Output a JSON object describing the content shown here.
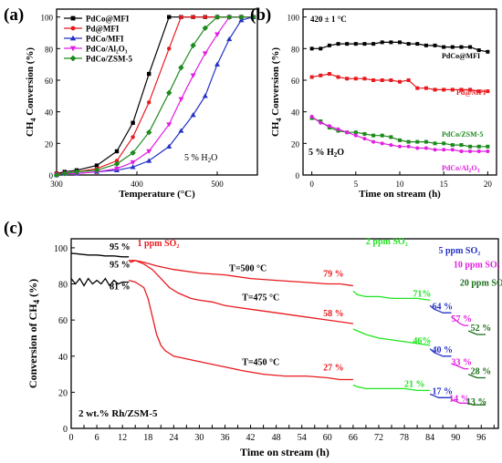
{
  "chart_data": [
    {
      "panel": "(a)",
      "type": "line",
      "xlabel": "Temperature (°C)",
      "ylabel_main": "CH",
      "ylabel_sub": "4",
      "ylabel_rest": " Conversion (%)",
      "xlim": [
        300,
        550
      ],
      "ylim": [
        0,
        105
      ],
      "xticks": [
        300,
        400,
        500
      ],
      "yticks": [
        0,
        20,
        40,
        60,
        80,
        100
      ],
      "annotation": "5 % H₂O",
      "legend_placement": "top-left",
      "series": [
        {
          "name": "PdCo@MFI",
          "color": "#000000",
          "marker": "square",
          "x": [
            300,
            310,
            325,
            350,
            375,
            395,
            415,
            440,
            455,
            470,
            485,
            500,
            515,
            530,
            545
          ],
          "y": [
            1,
            2,
            3,
            6,
            15,
            33,
            64,
            100,
            100,
            100,
            100,
            100,
            100,
            100,
            100
          ]
        },
        {
          "name": "Pd@MFI",
          "color": "#e8191e",
          "marker": "circle",
          "x": [
            300,
            310,
            325,
            350,
            375,
            395,
            415,
            440,
            455,
            470,
            485,
            500,
            515,
            530,
            545
          ],
          "y": [
            1,
            1,
            2,
            4,
            9,
            24,
            46,
            80,
            100,
            100,
            100,
            100,
            100,
            100,
            100
          ]
        },
        {
          "name": "PdCo/MFI",
          "color": "#2430c8",
          "marker": "triangle-up",
          "x": [
            300,
            310,
            325,
            350,
            375,
            395,
            415,
            440,
            455,
            470,
            485,
            500,
            515,
            530,
            545
          ],
          "y": [
            0,
            1,
            1,
            2,
            3,
            5,
            9,
            18,
            28,
            38,
            50,
            70,
            86,
            98,
            100
          ]
        },
        {
          "name": "PdCo/Al₂O₃",
          "color": "#e21ee2",
          "marker": "triangle-down",
          "x": [
            300,
            310,
            325,
            350,
            375,
            395,
            415,
            440,
            455,
            470,
            485,
            500,
            515,
            530,
            545
          ],
          "y": [
            0,
            1,
            1,
            2,
            4,
            8,
            15,
            32,
            48,
            63,
            77,
            89,
            100,
            100,
            100
          ]
        },
        {
          "name": "PdCo/ZSM-5",
          "color": "#1c8a1c",
          "marker": "diamond",
          "x": [
            300,
            310,
            325,
            350,
            375,
            395,
            415,
            440,
            455,
            470,
            485,
            500,
            515,
            530,
            545
          ],
          "y": [
            0,
            1,
            2,
            3,
            7,
            14,
            27,
            52,
            68,
            82,
            93,
            100,
            100,
            100,
            100
          ]
        }
      ]
    },
    {
      "panel": "(b)",
      "type": "line",
      "xlabel": "Time on stream (h)",
      "ylabel_main": "CH",
      "ylabel_sub": "4",
      "ylabel_rest": " Conversion (%)",
      "xlim": [
        -1,
        21
      ],
      "ylim": [
        0,
        105
      ],
      "xticks": [
        0,
        5,
        10,
        15,
        20
      ],
      "yticks": [
        0,
        20,
        40,
        60,
        80,
        100
      ],
      "annotation_top": "420 ± 1 °C",
      "annotation_bottom": "5 % H₂O",
      "series": [
        {
          "name": "PdCo@MFI",
          "color": "#000000",
          "marker": "square",
          "x": [
            0,
            1,
            2,
            3,
            4,
            5,
            6,
            7,
            8,
            9,
            10,
            11,
            12,
            13,
            14,
            15,
            16,
            17,
            18,
            19,
            20
          ],
          "y": [
            80,
            80,
            82,
            83,
            83,
            83,
            83,
            83,
            84,
            84,
            84,
            83,
            83,
            82,
            82,
            81,
            81,
            81,
            81,
            79,
            78
          ]
        },
        {
          "name": "Pd@MFI",
          "color": "#e8191e",
          "marker": "square",
          "x": [
            0,
            1,
            2,
            3,
            4,
            5,
            6,
            7,
            8,
            9,
            10,
            11,
            12,
            13,
            14,
            15,
            16,
            17,
            18,
            19,
            20
          ],
          "y": [
            62,
            63,
            64,
            62,
            61,
            61,
            61,
            60,
            60,
            60,
            59,
            60,
            55,
            55,
            54,
            54,
            54,
            54,
            54,
            53,
            53
          ]
        },
        {
          "name": "PdCo/ZSM-5",
          "color": "#1c8a1c",
          "marker": "square",
          "x": [
            0,
            1,
            2,
            3,
            4,
            5,
            6,
            7,
            8,
            9,
            10,
            11,
            12,
            13,
            14,
            15,
            16,
            17,
            18,
            19,
            20
          ],
          "y": [
            36,
            34,
            30,
            28,
            27,
            27,
            26,
            25,
            25,
            24,
            22,
            21,
            21,
            21,
            20,
            20,
            19,
            19,
            18,
            18,
            18
          ]
        },
        {
          "name": "PdCo/Al₂O₃",
          "color": "#e21ee2",
          "marker": "circle",
          "x": [
            0,
            1,
            2,
            3,
            4,
            5,
            6,
            7,
            8,
            9,
            10,
            11,
            12,
            13,
            14,
            15,
            16,
            17,
            18,
            19,
            20
          ],
          "y": [
            37,
            33,
            31,
            29,
            27,
            25,
            23,
            21,
            20,
            19,
            18,
            18,
            17,
            17,
            16,
            16,
            16,
            15,
            15,
            15,
            15
          ]
        }
      ]
    },
    {
      "panel": "(c)",
      "type": "line",
      "xlabel": "Time on stream (h)",
      "ylabel": "Conversion of CH₄ (%)",
      "xlim": [
        0,
        100
      ],
      "ylim": [
        0,
        105
      ],
      "xticks": [
        0,
        3,
        6,
        9,
        12,
        15,
        18,
        21,
        24,
        27,
        30,
        33,
        36,
        39,
        42,
        45,
        48,
        51,
        54,
        57,
        60,
        63,
        66,
        69,
        72,
        75,
        78,
        81,
        84,
        87,
        90,
        93,
        96,
        99
      ],
      "xtick_labels": [
        0,
        6,
        12,
        18,
        24,
        30,
        36,
        42,
        48,
        54,
        60,
        66,
        72,
        78,
        84,
        90,
        96
      ],
      "yticks": [
        0,
        20,
        40,
        60,
        80,
        100
      ],
      "bottom_note": "2 wt.% Rh/ZSM-5",
      "segments": [
        {
          "color": "#000000",
          "x": [
            0,
            2,
            4,
            6,
            8,
            10,
            12,
            13.5
          ],
          "y": [
            97,
            96.5,
            96,
            96,
            95.5,
            95.5,
            95,
            95
          ]
        },
        {
          "color": "#000000",
          "x": [
            0,
            1,
            2,
            3,
            4,
            5,
            6,
            7,
            8,
            9,
            10,
            11,
            12,
            13.5
          ],
          "y": [
            83,
            80,
            83,
            79,
            83,
            80,
            82,
            80,
            83,
            79,
            82,
            80,
            81,
            81
          ]
        },
        {
          "color": "#e8191e",
          "x": [
            13.5,
            14,
            15,
            17,
            20,
            24,
            30,
            36,
            42,
            48,
            54,
            60,
            63,
            66
          ],
          "y": [
            93,
            92,
            93,
            92,
            90,
            88,
            86,
            85,
            83,
            82,
            81,
            80,
            80,
            79
          ]
        },
        {
          "color": "#e8191e",
          "x": [
            13.5,
            15,
            17,
            19,
            21,
            23,
            25,
            28,
            30,
            33,
            36,
            42,
            48,
            54,
            60,
            66
          ],
          "y": [
            93,
            93,
            91,
            88,
            83,
            78,
            75,
            72,
            71,
            70,
            68,
            66,
            64,
            62,
            60,
            58
          ]
        },
        {
          "color": "#e8191e",
          "x": [
            13.5,
            15,
            17,
            18,
            19,
            20,
            21,
            22,
            24,
            26,
            28,
            30,
            32,
            36,
            40,
            45,
            50,
            55,
            60,
            63,
            66
          ],
          "y": [
            82,
            81,
            78,
            72,
            62,
            52,
            46,
            43,
            40,
            39,
            38,
            37,
            36,
            34,
            32,
            30,
            29,
            29,
            28,
            27,
            27
          ]
        },
        {
          "color": "#1ee61e",
          "x": [
            66,
            67,
            69,
            72,
            75,
            78,
            81,
            84
          ],
          "y": [
            76,
            74,
            73,
            73,
            72,
            72,
            72,
            71
          ]
        },
        {
          "color": "#1ee61e",
          "x": [
            66,
            67,
            69,
            72,
            75,
            78,
            81,
            84
          ],
          "y": [
            55,
            54,
            52,
            50,
            49,
            48,
            47,
            46
          ]
        },
        {
          "color": "#1ee61e",
          "x": [
            66,
            67,
            69,
            72,
            75,
            78,
            81,
            84
          ],
          "y": [
            24,
            23,
            22,
            22,
            22,
            22,
            21,
            21
          ]
        },
        {
          "color": "#2430c8",
          "x": [
            84,
            85,
            86,
            87,
            88,
            89
          ],
          "y": [
            68,
            66,
            65,
            64,
            64,
            64
          ]
        },
        {
          "color": "#2430c8",
          "x": [
            84,
            85,
            86,
            87,
            88,
            89
          ],
          "y": [
            44,
            42,
            41,
            40,
            40,
            40
          ]
        },
        {
          "color": "#2430c8",
          "x": [
            84,
            85,
            86,
            87,
            88,
            89
          ],
          "y": [
            19,
            18,
            17,
            17,
            17,
            17
          ]
        },
        {
          "color": "#e21ee2",
          "x": [
            89,
            90,
            91,
            92,
            93
          ],
          "y": [
            62,
            60,
            58,
            57,
            57
          ]
        },
        {
          "color": "#e21ee2",
          "x": [
            89,
            90,
            91,
            92,
            93
          ],
          "y": [
            36,
            35,
            34,
            33,
            33
          ]
        },
        {
          "color": "#e21ee2",
          "x": [
            89,
            90,
            91,
            92,
            93
          ],
          "y": [
            16,
            15,
            14,
            14,
            14
          ]
        },
        {
          "color": "#1c6e1c",
          "x": [
            93,
            94,
            95,
            96,
            97
          ],
          "y": [
            54,
            53,
            52,
            52,
            52
          ]
        },
        {
          "color": "#1c6e1c",
          "x": [
            93,
            94,
            95,
            96,
            97
          ],
          "y": [
            30,
            29,
            28,
            28,
            28
          ]
        },
        {
          "color": "#1c6e1c",
          "x": [
            93,
            94,
            95,
            96,
            97
          ],
          "y": [
            14,
            13,
            13,
            13,
            13
          ]
        }
      ],
      "annotations": [
        {
          "text": "95 %",
          "color": "#000000",
          "x": 9,
          "y": 99
        },
        {
          "text": "95 %",
          "color": "#000000",
          "x": 9,
          "y": 89
        },
        {
          "text": "81 %",
          "color": "#000000",
          "x": 9,
          "y": 77
        },
        {
          "text": "1 ppm SO₂",
          "color": "#e8191e",
          "x": 15.5,
          "y": 101
        },
        {
          "text": "T=500 °C",
          "color": "#000000",
          "x": 37,
          "y": 87
        },
        {
          "text": "T=475 °C",
          "color": "#000000",
          "x": 40,
          "y": 71
        },
        {
          "text": "T=450 °C",
          "color": "#000000",
          "x": 40,
          "y": 35
        },
        {
          "text": "79 %",
          "color": "#e8191e",
          "x": 59,
          "y": 84
        },
        {
          "text": "58 %",
          "color": "#e8191e",
          "x": 59,
          "y": 62
        },
        {
          "text": "27 %",
          "color": "#e8191e",
          "x": 59,
          "y": 32
        },
        {
          "text": "2 ppm SO₂",
          "color": "#1ee61e",
          "x": 69,
          "y": 102
        },
        {
          "text": "71%",
          "color": "#1ee61e",
          "x": 80,
          "y": 73
        },
        {
          "text": "46%",
          "color": "#1ee61e",
          "x": 80,
          "y": 47
        },
        {
          "text": "21 %",
          "color": "#1ee61e",
          "x": 78,
          "y": 23
        },
        {
          "text": "5 ppm SO₂",
          "color": "#2430c8",
          "x": 86,
          "y": 97
        },
        {
          "text": "64 %",
          "color": "#2430c8",
          "x": 84.5,
          "y": 66
        },
        {
          "text": "40 %",
          "color": "#2430c8",
          "x": 84.5,
          "y": 42
        },
        {
          "text": "17 %",
          "color": "#2430c8",
          "x": 84.5,
          "y": 19
        },
        {
          "text": "10 ppm SO₂",
          "color": "#e21ee2",
          "x": 89.5,
          "y": 89
        },
        {
          "text": "57 %",
          "color": "#e21ee2",
          "x": 89,
          "y": 59
        },
        {
          "text": "33 %",
          "color": "#e21ee2",
          "x": 89,
          "y": 35
        },
        {
          "text": "14 %",
          "color": "#e21ee2",
          "x": 88.5,
          "y": 15
        },
        {
          "text": "20 ppm SO₂",
          "color": "#1c6e1c",
          "x": 91,
          "y": 79
        },
        {
          "text": "52 %",
          "color": "#1c6e1c",
          "x": 93.5,
          "y": 54
        },
        {
          "text": "28 %",
          "color": "#1c6e1c",
          "x": 93.5,
          "y": 30
        },
        {
          "text": "13 %",
          "color": "#1c6e1c",
          "x": 92.5,
          "y": 13
        }
      ]
    }
  ]
}
